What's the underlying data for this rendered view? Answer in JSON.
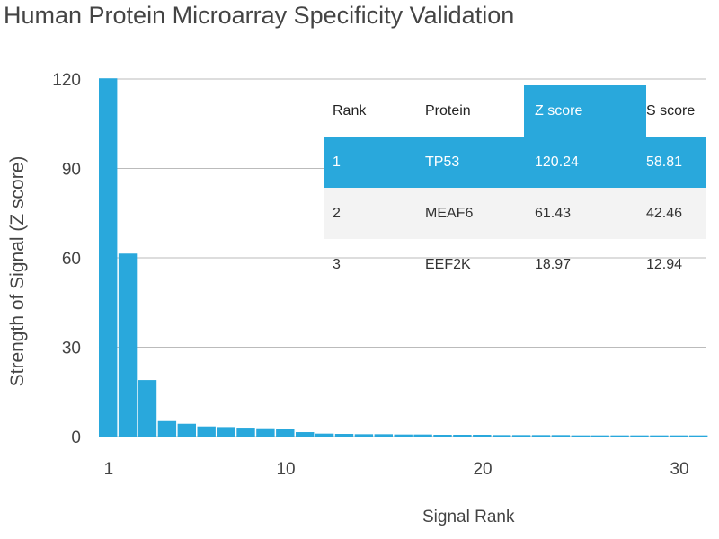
{
  "chart_data": {
    "type": "bar",
    "title": "Human Protein Microarray Specificity Validation",
    "xlabel": "Signal Rank",
    "ylabel": "Strength of Signal (Z score)",
    "ylim": [
      0,
      120
    ],
    "yticks": [
      0,
      30,
      60,
      90,
      120
    ],
    "xticks": [
      1,
      10,
      20,
      30
    ],
    "grid": true,
    "color": "#29a8dc",
    "x": [
      1,
      2,
      3,
      4,
      5,
      6,
      7,
      8,
      9,
      10,
      11,
      12,
      13,
      14,
      15,
      16,
      17,
      18,
      19,
      20,
      21,
      22,
      23,
      24,
      25,
      26,
      27,
      28,
      29,
      30,
      31
    ],
    "values": [
      120.24,
      61.43,
      18.97,
      5.2,
      4.3,
      3.4,
      3.2,
      3.0,
      2.8,
      2.6,
      1.5,
      1.0,
      0.9,
      0.8,
      0.8,
      0.7,
      0.7,
      0.6,
      0.6,
      0.6,
      0.5,
      0.5,
      0.5,
      0.5,
      0.4,
      0.4,
      0.4,
      0.4,
      0.4,
      0.4,
      0.4
    ]
  },
  "table": {
    "headers": [
      "Rank",
      "Protein",
      "Z score",
      "S score"
    ],
    "rows": [
      [
        "1",
        "TP53",
        "120.24",
        "58.81"
      ],
      [
        "2",
        "MEAF6",
        "61.43",
        "42.46"
      ],
      [
        "3",
        "EEF2K",
        "18.97",
        "12.94"
      ]
    ]
  }
}
